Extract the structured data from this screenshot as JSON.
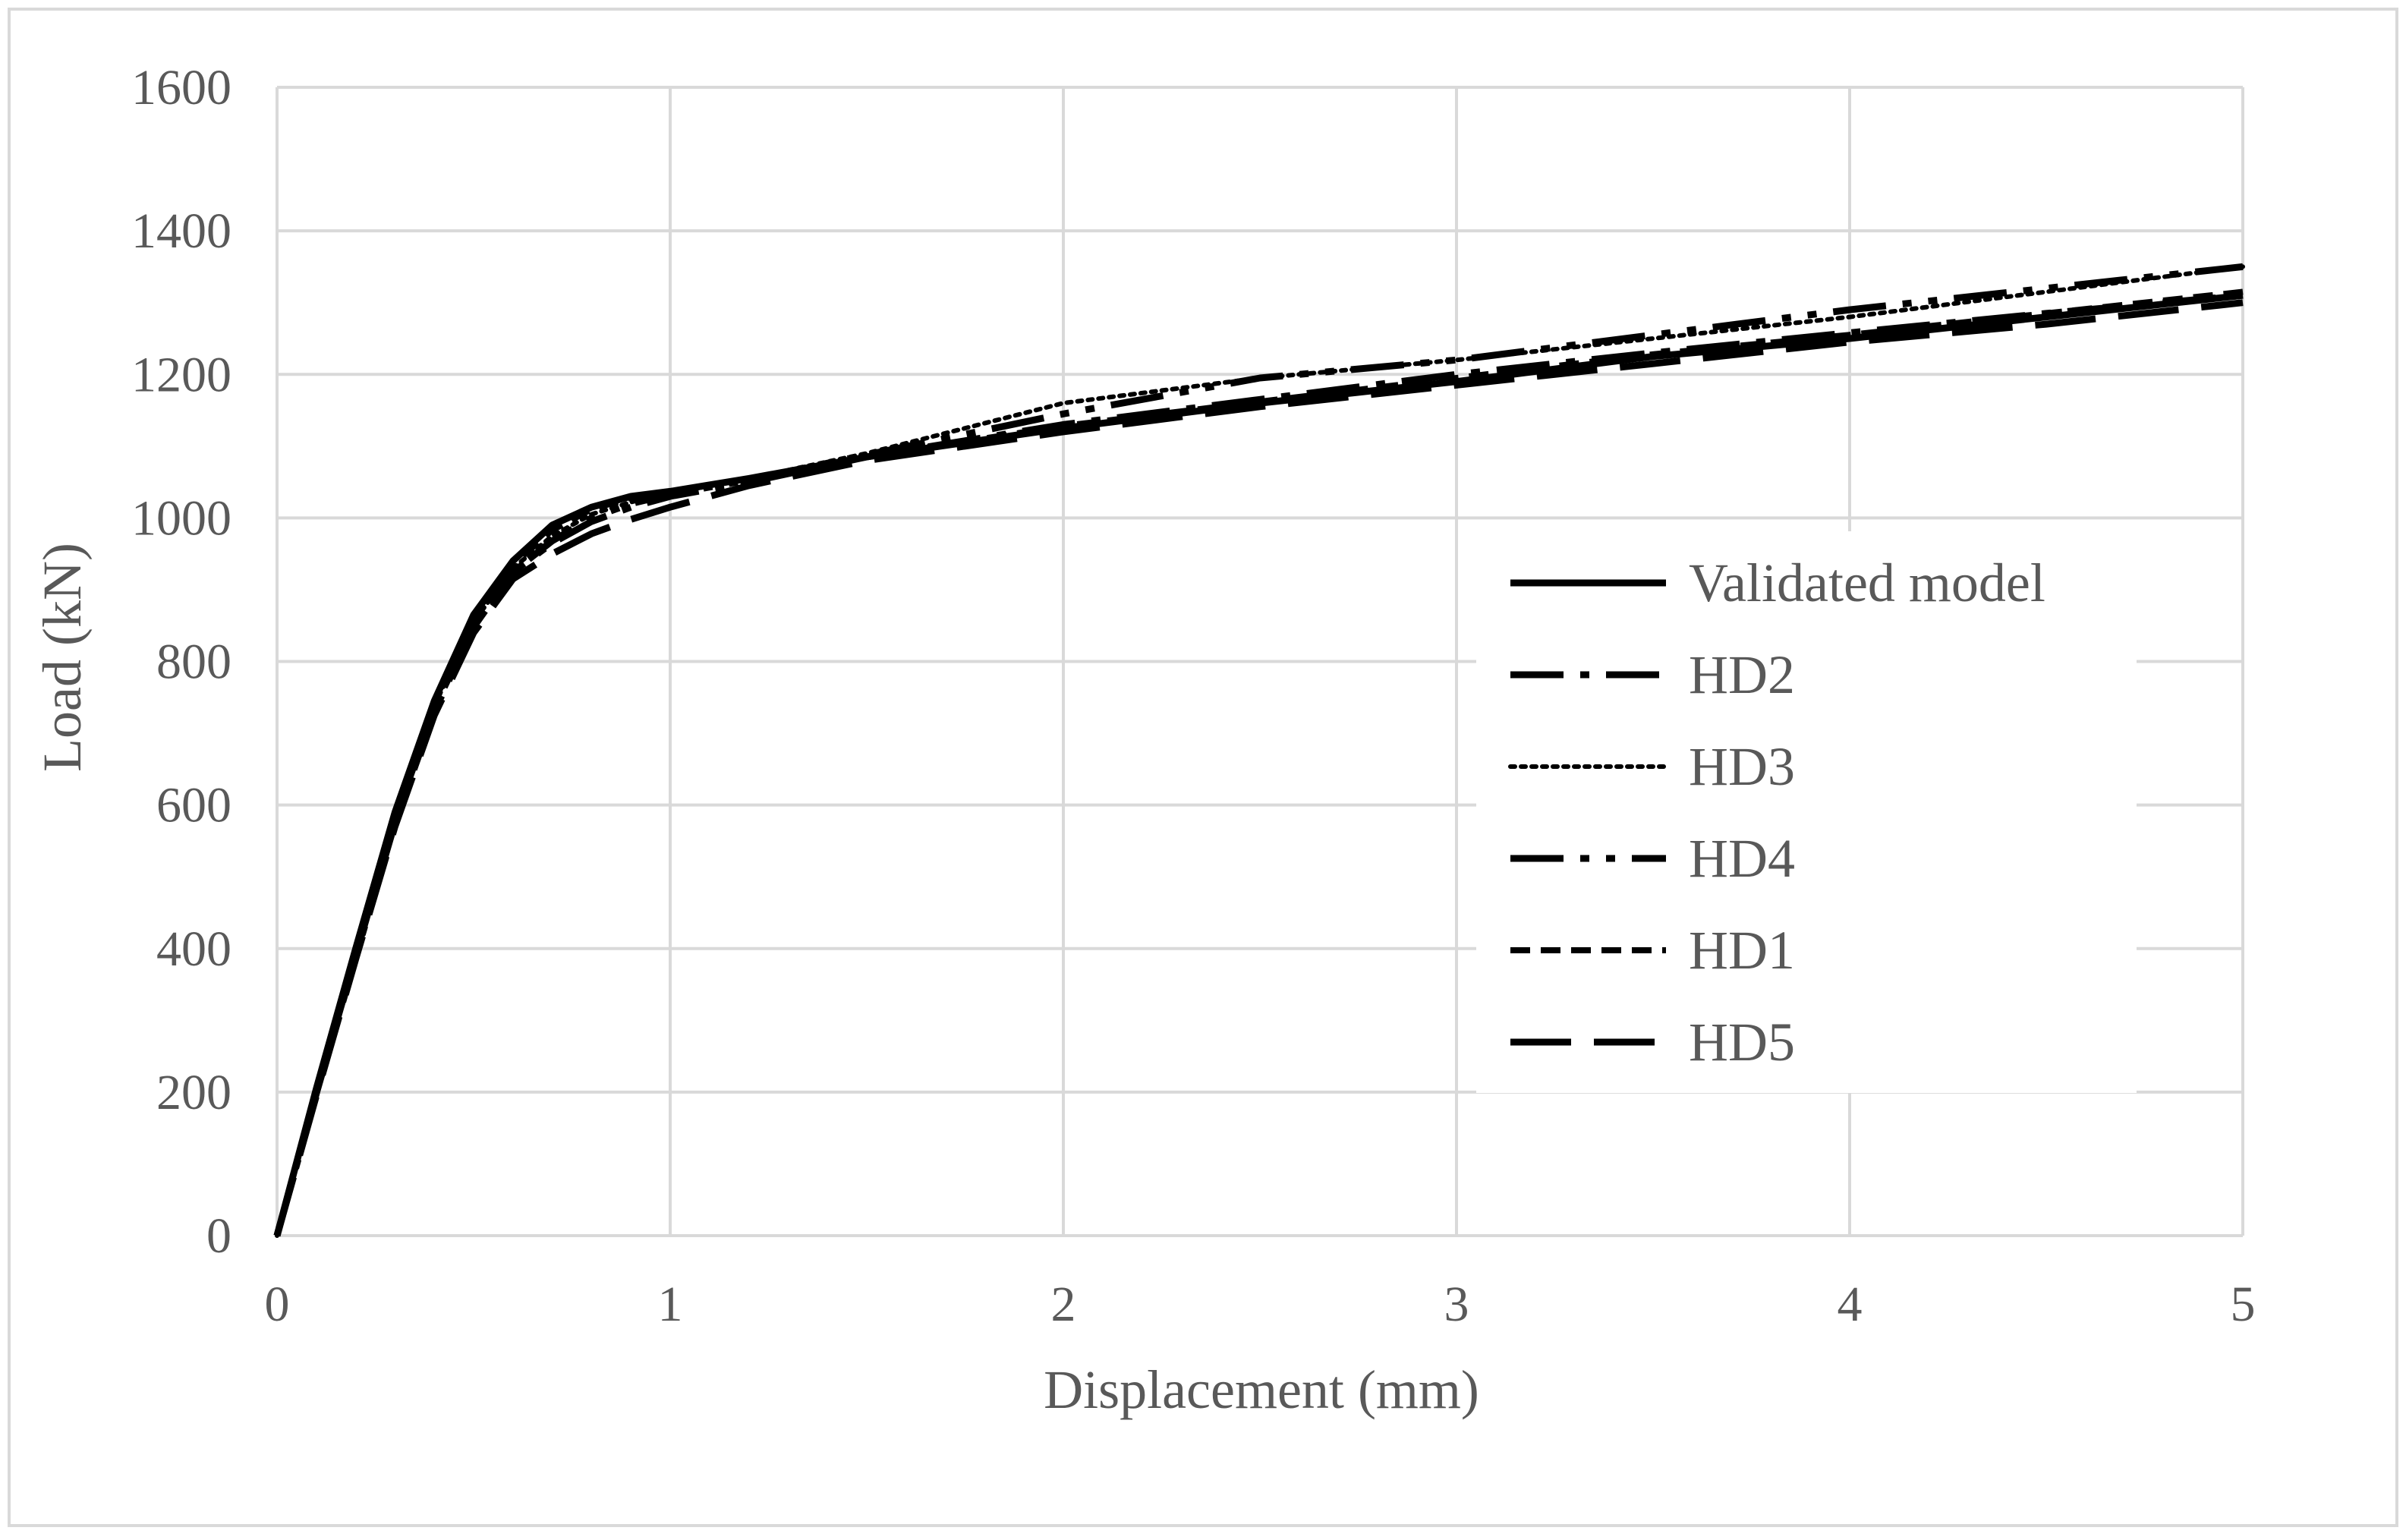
{
  "chart_data": {
    "type": "line",
    "title": "",
    "xlabel": "Displacement (mm)",
    "ylabel": "Load (kN)",
    "xlim": [
      0,
      5
    ],
    "ylim": [
      0,
      1600
    ],
    "xticks": [
      0,
      1,
      2,
      3,
      4,
      5
    ],
    "yticks": [
      0,
      200,
      400,
      600,
      800,
      1000,
      1200,
      1400,
      1600
    ],
    "xtick_labels": [
      "0",
      "1",
      "2",
      "3",
      "4",
      "5"
    ],
    "ytick_labels": [
      "0",
      "200",
      "400",
      "600",
      "800",
      "1000",
      "1200",
      "1400",
      "1600"
    ],
    "grid": true,
    "legend_position": "center-right",
    "series": [
      {
        "name": "Validated model",
        "style": "solid",
        "color": "#000000",
        "x": [
          0,
          0.1,
          0.2,
          0.3,
          0.4,
          0.5,
          0.6,
          0.7,
          0.8,
          0.9,
          1.0,
          1.2,
          1.5,
          2.0,
          2.5,
          3.0,
          3.5,
          4.0,
          4.5,
          5.0
        ],
        "y": [
          0,
          205,
          400,
          590,
          745,
          865,
          940,
          990,
          1015,
          1030,
          1037,
          1055,
          1085,
          1125,
          1160,
          1190,
          1225,
          1250,
          1280,
          1310
        ]
      },
      {
        "name": "HD2",
        "style": "dashdot",
        "color": "#000000",
        "x": [
          0,
          0.1,
          0.2,
          0.3,
          0.4,
          0.5,
          0.6,
          0.7,
          0.8,
          0.9,
          1.0,
          1.2,
          1.5,
          2.0,
          2.5,
          3.0,
          3.5,
          4.0,
          4.5,
          5.0
        ],
        "y": [
          0,
          200,
          390,
          580,
          735,
          850,
          925,
          965,
          995,
          1015,
          1030,
          1050,
          1085,
          1130,
          1165,
          1200,
          1230,
          1258,
          1285,
          1310
        ]
      },
      {
        "name": "HD3",
        "style": "dotted",
        "color": "#000000",
        "x": [
          0,
          0.1,
          0.2,
          0.3,
          0.4,
          0.5,
          0.6,
          0.7,
          0.8,
          0.9,
          1.0,
          1.2,
          1.5,
          2.0,
          2.5,
          3.0,
          3.5,
          4.0,
          4.5,
          5.0
        ],
        "y": [
          0,
          200,
          392,
          582,
          738,
          855,
          930,
          975,
          1005,
          1022,
          1035,
          1055,
          1090,
          1160,
          1195,
          1220,
          1250,
          1280,
          1315,
          1350
        ]
      },
      {
        "name": "HD4",
        "style": "dashdotdot",
        "color": "#000000",
        "x": [
          0,
          0.1,
          0.2,
          0.3,
          0.4,
          0.5,
          0.6,
          0.7,
          0.8,
          0.9,
          1.0,
          1.2,
          1.5,
          2.0,
          2.5,
          3.0,
          3.5,
          4.0,
          4.5,
          5.0
        ],
        "y": [
          0,
          198,
          388,
          575,
          730,
          848,
          925,
          968,
          1000,
          1020,
          1033,
          1053,
          1088,
          1145,
          1195,
          1220,
          1255,
          1290,
          1320,
          1350
        ]
      },
      {
        "name": "HD1",
        "style": "shortdash",
        "color": "#000000",
        "x": [
          0,
          0.1,
          0.2,
          0.3,
          0.4,
          0.5,
          0.6,
          0.7,
          0.8,
          0.9,
          1.0,
          1.2,
          1.5,
          2.0,
          2.5,
          3.0,
          3.5,
          4.0,
          4.5,
          5.0
        ],
        "y": [
          0,
          202,
          395,
          585,
          740,
          858,
          935,
          983,
          1012,
          1028,
          1036,
          1055,
          1085,
          1128,
          1162,
          1195,
          1228,
          1255,
          1285,
          1315
        ]
      },
      {
        "name": "HD5",
        "style": "longdash",
        "color": "#000000",
        "x": [
          0,
          0.1,
          0.2,
          0.3,
          0.4,
          0.5,
          0.6,
          0.7,
          0.8,
          0.9,
          1.0,
          1.2,
          1.5,
          2.0,
          2.5,
          3.0,
          3.5,
          4.0,
          4.5,
          5.0
        ],
        "y": [
          0,
          195,
          385,
          570,
          725,
          840,
          915,
          950,
          978,
          998,
          1015,
          1045,
          1080,
          1120,
          1155,
          1185,
          1215,
          1245,
          1270,
          1300
        ]
      }
    ]
  }
}
